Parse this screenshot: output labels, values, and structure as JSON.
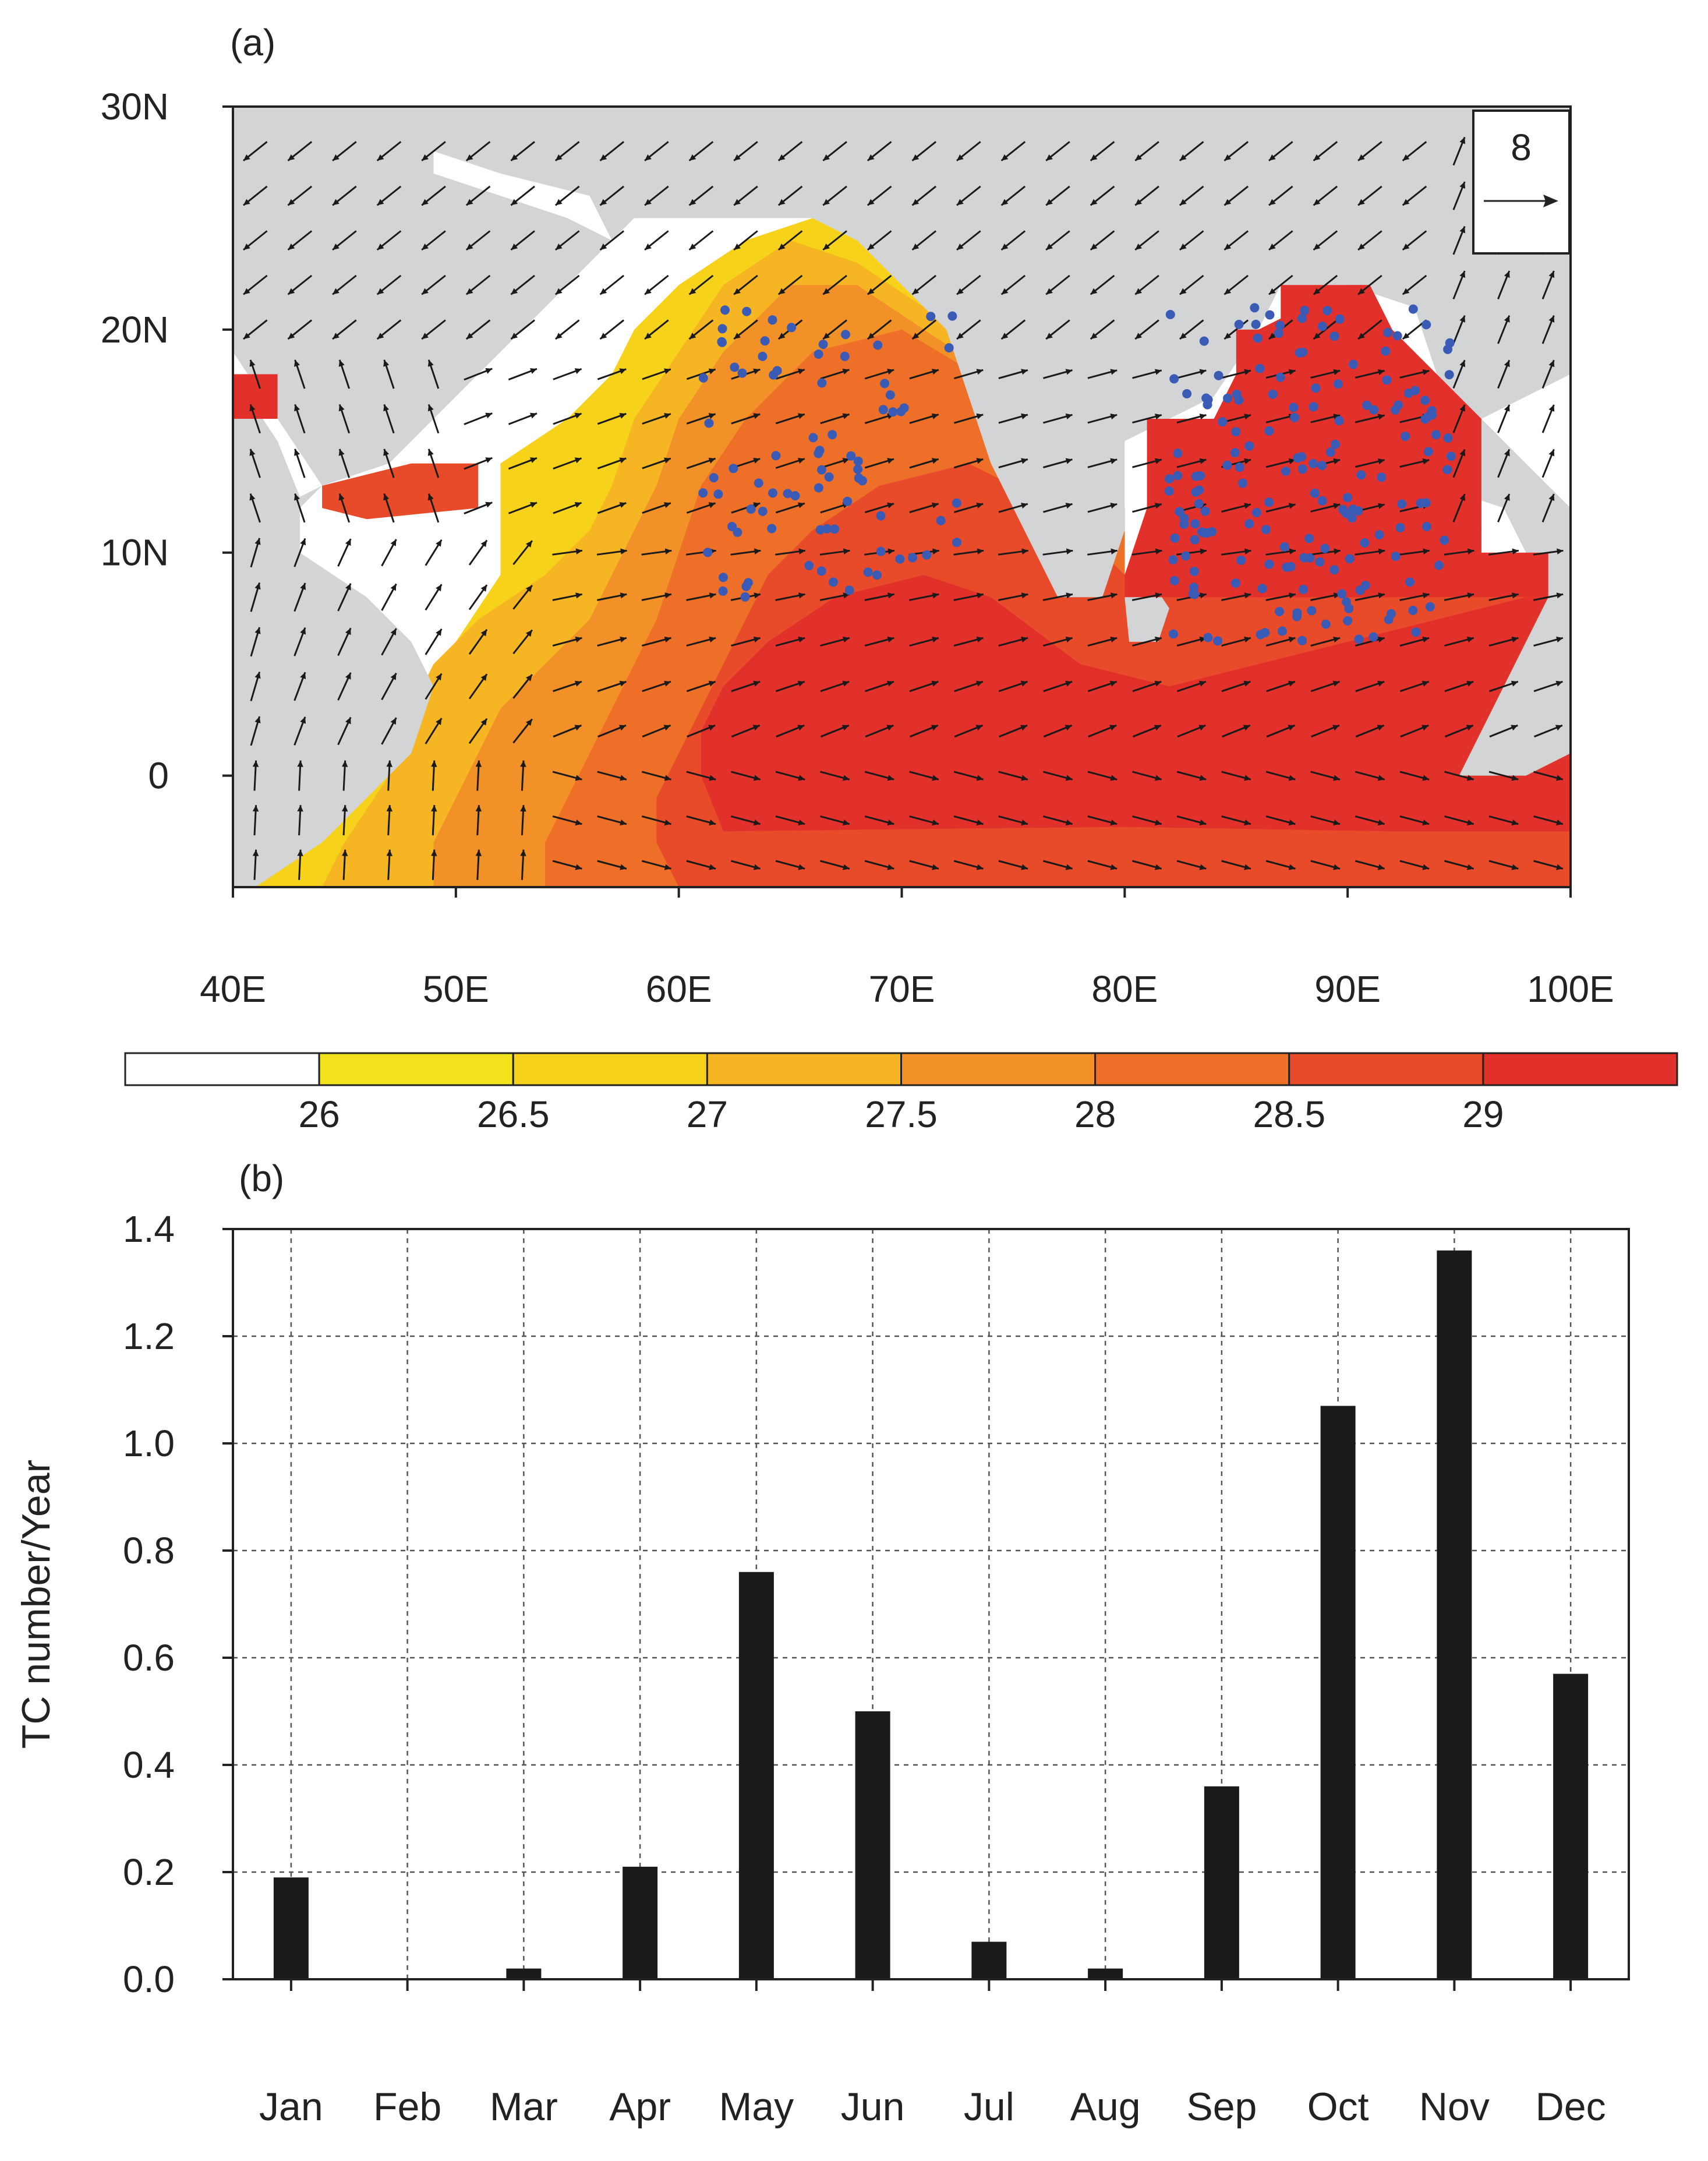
{
  "colors": {
    "land": "#d3d4d6",
    "dot": "#3a5bb5",
    "arrow": "#1a1a1a",
    "bar": "#1a1a1a",
    "grid": "#555555",
    "sst_fills": [
      "#ffffff",
      "#f2e21c",
      "#f6d21a",
      "#f6b623",
      "#f29127",
      "#ee7028",
      "#e84b2a",
      "#e2302a"
    ]
  },
  "chart_data": [
    {
      "type": "heatmap",
      "panel_label": "(a)",
      "xlim": [
        40,
        100
      ],
      "ylim": [
        -5,
        30
      ],
      "x_ticks": [
        40,
        50,
        60,
        70,
        80,
        90,
        100
      ],
      "x_tick_labels": [
        "40E",
        "50E",
        "60E",
        "70E",
        "80E",
        "90E",
        "100E"
      ],
      "y_ticks": [
        0,
        10,
        20,
        30
      ],
      "y_tick_labels": [
        "0",
        "10N",
        "20N",
        "30N"
      ],
      "reference_vector": "8",
      "colorbar": {
        "levels": [
          "26",
          "26.5",
          "27",
          "27.5",
          "28",
          "28.5",
          "29"
        ]
      },
      "description_series": "SST (shaded), wind vectors (arrows) and TC genesis locations (dots)"
    },
    {
      "type": "bar",
      "panel_label": "(b)",
      "categories": [
        "Jan",
        "Feb",
        "Mar",
        "Apr",
        "May",
        "Jun",
        "Jul",
        "Aug",
        "Sep",
        "Oct",
        "Nov",
        "Dec"
      ],
      "values": [
        0.19,
        0.0,
        0.02,
        0.21,
        0.76,
        0.5,
        0.07,
        0.02,
        0.36,
        1.07,
        1.36,
        0.57
      ],
      "ylabel": "TC number/Year",
      "xlabel": "",
      "ylim": [
        0,
        1.4
      ],
      "y_ticks": [
        "0.0",
        "0.2",
        "0.4",
        "0.6",
        "0.8",
        "1.0",
        "1.2",
        "1.4"
      ]
    }
  ]
}
